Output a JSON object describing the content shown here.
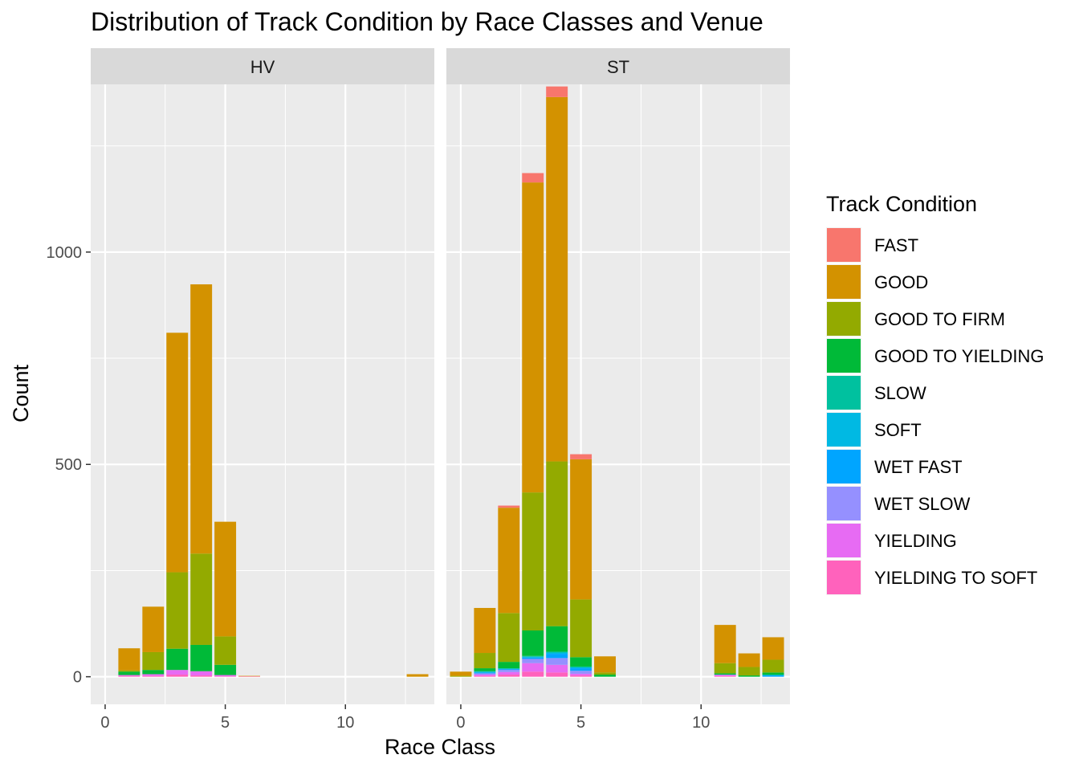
{
  "chart_data": {
    "type": "bar",
    "stacked": true,
    "title": "Distribution of Track Condition by Race Classes and Venue",
    "xlabel": "Race Class",
    "ylabel": "Count",
    "xlim": [
      -0.6,
      13.7
    ],
    "ylim": [
      -65,
      1395
    ],
    "x_ticks": [
      0,
      5,
      10
    ],
    "x_tick_labels": [
      "0",
      "5",
      "10"
    ],
    "y_ticks": [
      0,
      500,
      1000
    ],
    "y_tick_labels": [
      "0",
      "500",
      "1000"
    ],
    "grid": true,
    "legend": {
      "title": "Track Condition",
      "position": "right",
      "entries": [
        {
          "name": "FAST",
          "color": "#F8766D"
        },
        {
          "name": "GOOD",
          "color": "#D39200"
        },
        {
          "name": "GOOD TO FIRM",
          "color": "#93AA00"
        },
        {
          "name": "GOOD TO YIELDING",
          "color": "#00BA38"
        },
        {
          "name": "SLOW",
          "color": "#00C19F"
        },
        {
          "name": "SOFT",
          "color": "#00B9E3"
        },
        {
          "name": "WET FAST",
          "color": "#00A5FF"
        },
        {
          "name": "WET SLOW",
          "color": "#9590FF"
        },
        {
          "name": "YIELDING",
          "color": "#E76BF3"
        },
        {
          "name": "YIELDING TO SOFT",
          "color": "#FF62BC"
        }
      ]
    },
    "panels": [
      {
        "venue": "HV",
        "bars": [
          {
            "x": 1,
            "values": {
              "YIELDING TO SOFT": 2,
              "YIELDING": 2,
              "GOOD TO YIELDING": 8,
              "GOOD TO FIRM": 3,
              "GOOD": 52
            }
          },
          {
            "x": 2,
            "values": {
              "YIELDING TO SOFT": 2,
              "YIELDING": 4,
              "GOOD TO YIELDING": 10,
              "GOOD TO FIRM": 42,
              "GOOD": 107
            }
          },
          {
            "x": 3,
            "values": {
              "YIELDING TO SOFT": 5,
              "YIELDING": 11,
              "GOOD TO YIELDING": 50,
              "GOOD TO FIRM": 180,
              "GOOD": 564
            }
          },
          {
            "x": 4,
            "values": {
              "YIELDING TO SOFT": 3,
              "YIELDING": 10,
              "GOOD TO YIELDING": 62,
              "GOOD TO FIRM": 215,
              "GOOD": 634
            }
          },
          {
            "x": 5,
            "values": {
              "YIELDING TO SOFT": 1,
              "YIELDING": 3,
              "GOOD TO YIELDING": 24,
              "GOOD TO FIRM": 67,
              "GOOD": 270
            }
          },
          {
            "x": 6,
            "values": {
              "YIELDING TO SOFT": 1,
              "GOOD": 1
            }
          },
          {
            "x": 13,
            "values": {
              "GOOD": 6
            }
          }
        ]
      },
      {
        "venue": "ST",
        "bars": [
          {
            "x": 0,
            "values": {
              "GOOD TO FIRM": 2,
              "GOOD": 10
            }
          },
          {
            "x": 1,
            "values": {
              "YIELDING TO SOFT": 2,
              "YIELDING": 3,
              "WET SLOW": 3,
              "WET FAST": 2,
              "SOFT": 2,
              "SLOW": 1,
              "GOOD TO YIELDING": 7,
              "GOOD TO FIRM": 36,
              "GOOD": 106
            }
          },
          {
            "x": 2,
            "values": {
              "YIELDING TO SOFT": 5,
              "YIELDING": 6,
              "WET SLOW": 5,
              "WET FAST": 2,
              "SOFT": 1,
              "SLOW": 1,
              "GOOD TO YIELDING": 15,
              "GOOD TO FIRM": 115,
              "GOOD": 248,
              "FAST": 5
            }
          },
          {
            "x": 3,
            "values": {
              "YIELDING TO SOFT": 12,
              "YIELDING": 20,
              "WET SLOW": 10,
              "WET FAST": 3,
              "SOFT": 2,
              "SLOW": 2,
              "GOOD TO YIELDING": 60,
              "GOOD TO FIRM": 325,
              "GOOD": 730,
              "FAST": 22
            }
          },
          {
            "x": 4,
            "values": {
              "YIELDING TO SOFT": 10,
              "YIELDING": 18,
              "WET SLOW": 16,
              "WET FAST": 10,
              "SOFT": 3,
              "SLOW": 2,
              "GOOD TO YIELDING": 60,
              "GOOD TO FIRM": 388,
              "GOOD": 858,
              "FAST": 25
            }
          },
          {
            "x": 5,
            "values": {
              "YIELDING TO SOFT": 3,
              "YIELDING": 4,
              "WET SLOW": 7,
              "WET FAST": 6,
              "SOFT": 2,
              "SLOW": 2,
              "GOOD TO YIELDING": 22,
              "GOOD TO FIRM": 136,
              "GOOD": 330,
              "FAST": 12
            }
          },
          {
            "x": 6,
            "values": {
              "GOOD TO YIELDING": 5,
              "GOOD TO FIRM": 5,
              "GOOD": 38
            }
          },
          {
            "x": 11,
            "values": {
              "YIELDING TO SOFT": 2,
              "YIELDING": 2,
              "WET SLOW": 1,
              "GOOD TO YIELDING": 3,
              "GOOD TO FIRM": 24,
              "GOOD": 90
            }
          },
          {
            "x": 12,
            "values": {
              "GOOD TO YIELDING": 3,
              "GOOD TO FIRM": 20,
              "GOOD": 32
            }
          },
          {
            "x": 13,
            "values": {
              "WET FAST": 3,
              "SOFT": 1,
              "SLOW": 1,
              "GOOD TO YIELDING": 5,
              "GOOD TO FIRM": 30,
              "GOOD": 53
            }
          }
        ]
      }
    ]
  }
}
